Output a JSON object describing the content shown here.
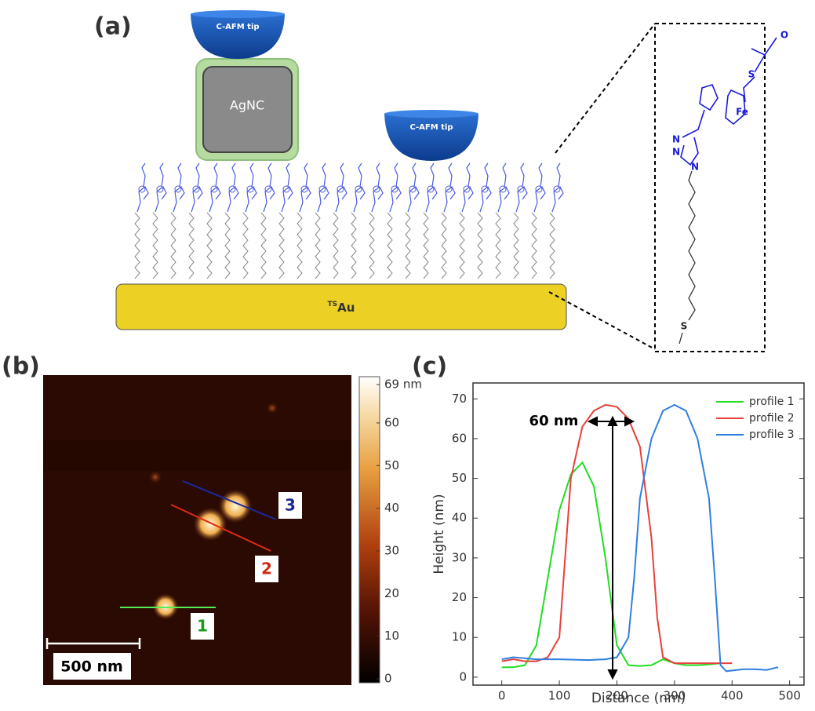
{
  "panels": {
    "a": "(a)",
    "b": "(b)",
    "c": "(c)"
  },
  "schematic": {
    "tip_labels": [
      "C-AFM tip",
      "C-AFM tip"
    ],
    "nanocube": "AgNC",
    "substrate_prefix": "TS",
    "substrate": "Au",
    "molecule_labels": [
      "O",
      "S",
      "Fe",
      "N",
      "N",
      "N",
      "S"
    ]
  },
  "afm": {
    "profile_labels": [
      "1",
      "2",
      "3"
    ],
    "scale_bar": "500 nm",
    "colorbar": {
      "lim": [
        0,
        69
      ],
      "ticks": [
        0,
        10,
        20,
        30,
        40,
        50,
        60,
        {
          "value": 69,
          "label": "69 nm"
        }
      ]
    }
  },
  "chart_data": {
    "type": "line",
    "xlabel": "Distance (nm)",
    "ylabel": "Height (nm)",
    "annotation": "60 nm",
    "xlim": [
      -50,
      525
    ],
    "ylim": [
      -2,
      74
    ],
    "xticks": [
      0,
      100,
      200,
      300,
      400,
      500
    ],
    "yticks": [
      0,
      10,
      20,
      30,
      40,
      50,
      60,
      70
    ],
    "series": [
      {
        "name": "profile 1",
        "color": "#22dd22",
        "x": [
          0,
          20,
          40,
          60,
          80,
          100,
          120,
          140,
          160,
          180,
          200,
          220,
          240,
          260,
          280,
          300,
          320,
          340,
          360,
          380
        ],
        "values": [
          2.5,
          2.5,
          3,
          8,
          25,
          42,
          51,
          54,
          48,
          30,
          8,
          3,
          2.8,
          3,
          4.5,
          3.5,
          3,
          3,
          3.2,
          3.5
        ]
      },
      {
        "name": "profile 2",
        "color": "#e8403a",
        "x": [
          0,
          20,
          40,
          60,
          80,
          100,
          110,
          120,
          140,
          160,
          180,
          200,
          220,
          240,
          260,
          270,
          280,
          300,
          340,
          380,
          400
        ],
        "values": [
          4,
          4.5,
          4,
          4,
          5,
          10,
          30,
          50,
          63,
          67,
          68.5,
          68,
          65,
          58,
          35,
          15,
          5,
          3.5,
          3.5,
          3.5,
          3.5
        ]
      },
      {
        "name": "profile 3",
        "color": "#2f7fe0",
        "x": [
          0,
          20,
          60,
          100,
          150,
          180,
          200,
          220,
          230,
          240,
          260,
          280,
          300,
          320,
          340,
          360,
          370,
          380,
          390,
          420,
          440,
          460,
          480
        ],
        "values": [
          4.5,
          5,
          4.5,
          4.5,
          4.3,
          4.5,
          5,
          10,
          25,
          45,
          60,
          67,
          68.5,
          67,
          60,
          45,
          25,
          3,
          1.5,
          2,
          2,
          1.8,
          2.5
        ]
      }
    ]
  }
}
